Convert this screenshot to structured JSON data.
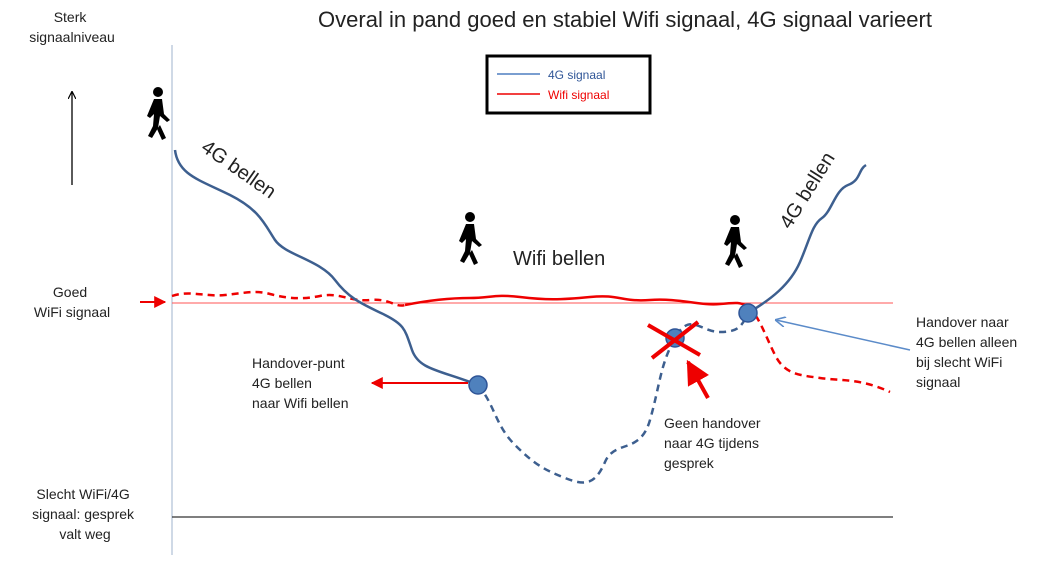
{
  "title": "Overal in pand goed en stabiel Wifi signaal, 4G signaal varieert",
  "y_axis_label": [
    "Sterk",
    "signaalniveau"
  ],
  "legend": [
    "4G signaal",
    "Wifi signaal"
  ],
  "labels": {
    "left_4g": "4G bellen",
    "wifi": "Wifi bellen",
    "right_4g": "4G bellen",
    "good_wifi": [
      "Goed",
      "WiFi signaal"
    ],
    "bad_signal": [
      "Slecht WiFi/4G",
      "signaal: gesprek",
      "valt weg"
    ],
    "handover_point": [
      "Handover-punt",
      "4G bellen",
      "naar Wifi bellen"
    ],
    "no_handover": [
      "Geen handover",
      "naar 4G tijdens",
      "gesprek"
    ],
    "handover_4g": [
      "Handover naar",
      "4G bellen alleen",
      "bij slecht WiFi",
      "signaal"
    ]
  }
}
